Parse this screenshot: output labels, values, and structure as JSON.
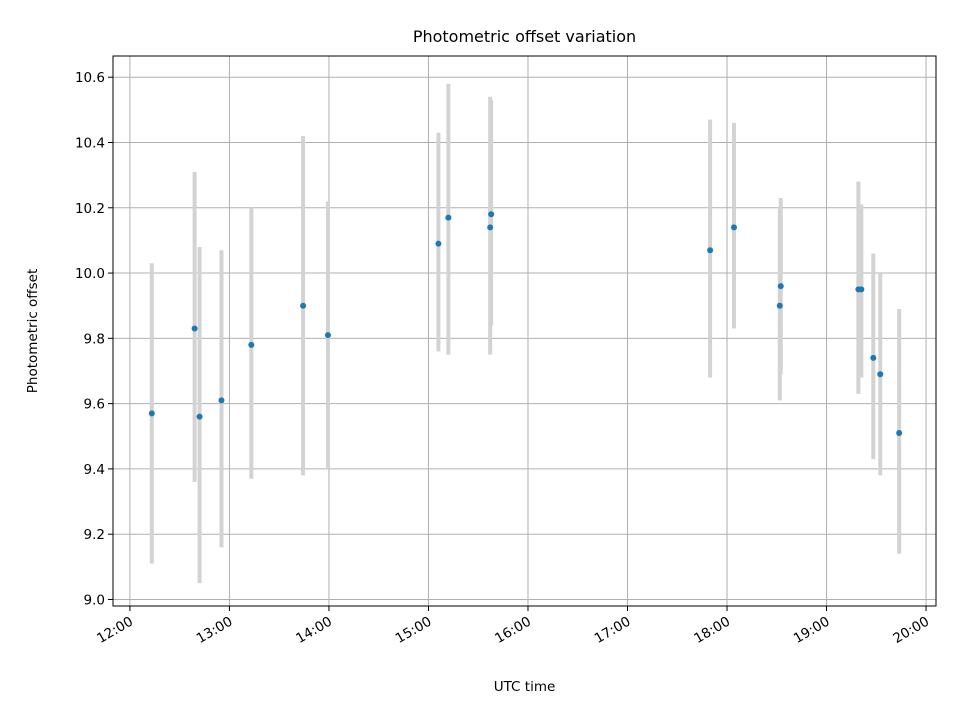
{
  "chart_data": {
    "type": "scatter",
    "title": "Photometric offset variation",
    "xlabel": "UTC time",
    "ylabel": "Photometric offset",
    "x_unit": "hour_of_day_utc",
    "xlim": [
      11.83,
      20.1
    ],
    "ylim": [
      8.98,
      10.665
    ],
    "x_ticks": [
      12,
      13,
      14,
      15,
      16,
      17,
      18,
      19,
      20
    ],
    "x_tick_labels": [
      "12:00",
      "13:00",
      "14:00",
      "15:00",
      "16:00",
      "17:00",
      "18:00",
      "19:00",
      "20:00"
    ],
    "y_ticks": [
      9.0,
      9.2,
      9.4,
      9.6,
      9.8,
      10.0,
      10.2,
      10.4,
      10.6
    ],
    "y_tick_labels": [
      "9.0",
      "9.2",
      "9.4",
      "9.6",
      "9.8",
      "10.0",
      "10.2",
      "10.4",
      "10.6"
    ],
    "grid": true,
    "point_color": "#1f77b4",
    "errorbar_color": "#d3d3d3",
    "points": [
      {
        "x": 12.22,
        "y": 9.57,
        "y_low": 9.11,
        "y_high": 10.03
      },
      {
        "x": 12.65,
        "y": 9.83,
        "y_low": 9.36,
        "y_high": 10.31
      },
      {
        "x": 12.7,
        "y": 9.56,
        "y_low": 9.05,
        "y_high": 10.08
      },
      {
        "x": 12.92,
        "y": 9.61,
        "y_low": 9.16,
        "y_high": 10.07
      },
      {
        "x": 13.22,
        "y": 9.78,
        "y_low": 9.37,
        "y_high": 10.2
      },
      {
        "x": 13.74,
        "y": 9.9,
        "y_low": 9.38,
        "y_high": 10.42
      },
      {
        "x": 13.99,
        "y": 9.81,
        "y_low": 9.4,
        "y_high": 10.22
      },
      {
        "x": 15.1,
        "y": 10.09,
        "y_low": 9.76,
        "y_high": 10.43
      },
      {
        "x": 15.2,
        "y": 10.17,
        "y_low": 9.75,
        "y_high": 10.58
      },
      {
        "x": 15.62,
        "y": 10.14,
        "y_low": 9.75,
        "y_high": 10.54
      },
      {
        "x": 15.63,
        "y": 10.18,
        "y_low": 9.84,
        "y_high": 10.53
      },
      {
        "x": 17.83,
        "y": 10.07,
        "y_low": 9.68,
        "y_high": 10.47
      },
      {
        "x": 18.07,
        "y": 10.14,
        "y_low": 9.83,
        "y_high": 10.46
      },
      {
        "x": 18.53,
        "y": 9.9,
        "y_low": 9.61,
        "y_high": 10.2
      },
      {
        "x": 18.54,
        "y": 9.96,
        "y_low": 9.69,
        "y_high": 10.23
      },
      {
        "x": 19.32,
        "y": 9.95,
        "y_low": 9.63,
        "y_high": 10.28
      },
      {
        "x": 19.35,
        "y": 9.95,
        "y_low": 9.68,
        "y_high": 10.21
      },
      {
        "x": 19.47,
        "y": 9.74,
        "y_low": 9.43,
        "y_high": 10.06
      },
      {
        "x": 19.54,
        "y": 9.69,
        "y_low": 9.38,
        "y_high": 10.0
      },
      {
        "x": 19.73,
        "y": 9.51,
        "y_low": 9.14,
        "y_high": 9.89
      }
    ]
  }
}
